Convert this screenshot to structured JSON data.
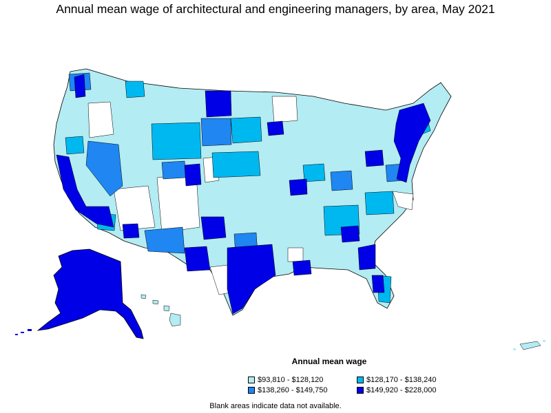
{
  "title": "Annual mean wage of architectural and engineering managers, by area, May 2021",
  "legend": {
    "title": "Annual mean wage",
    "items": [
      {
        "label": "$93,810 - $128,120",
        "color": "#b3ecf2"
      },
      {
        "label": "$128,170 - $138,240",
        "color": "#00b8f0"
      },
      {
        "label": "$138,260 - $149,750",
        "color": "#1f86f2"
      },
      {
        "label": "$149,920 - $228,000",
        "color": "#0000e6"
      }
    ]
  },
  "footnote": "Blank areas indicate data not available.",
  "colors": {
    "level1": "#b3ecf2",
    "level2": "#00b8f0",
    "level3": "#1f86f2",
    "level4": "#0000e6",
    "blank": "#ffffff",
    "border": "#000000"
  }
}
